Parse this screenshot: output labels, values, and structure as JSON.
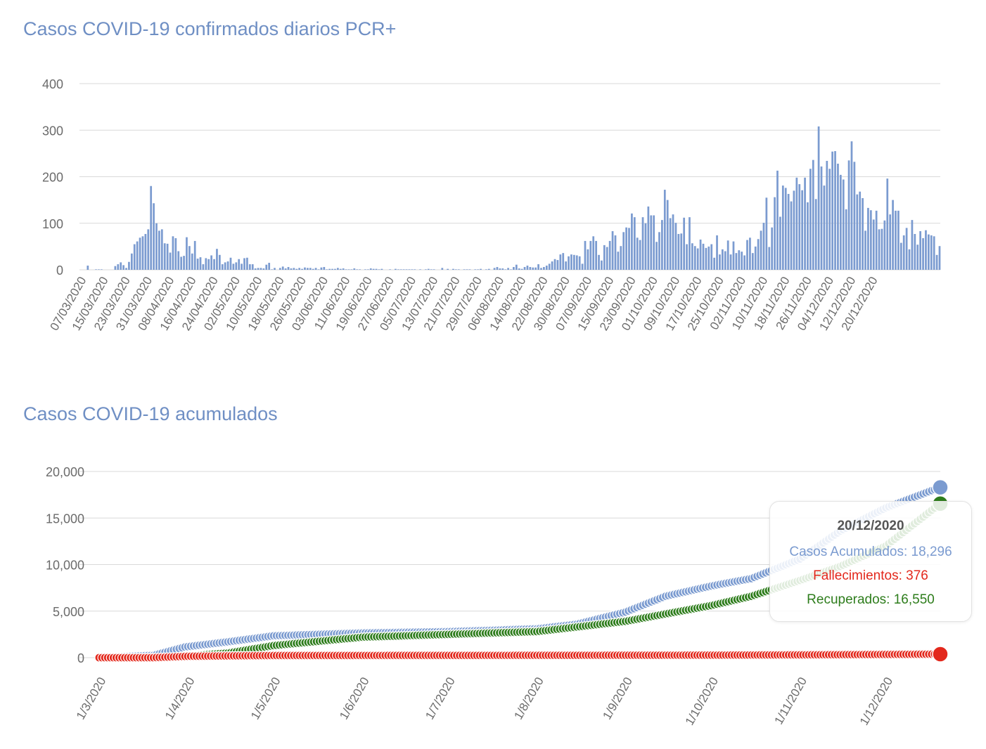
{
  "colors": {
    "accumulated": "#7b9bd0",
    "deaths": "#e3281c",
    "recovered": "#2e7d1c",
    "bar": "#7b9bd0",
    "grid": "#d9d9d9",
    "title": "#6f8fc4"
  },
  "chart_data": [
    {
      "type": "bar",
      "title": "Casos COVID-19 confirmados diarios PCR+",
      "ylim": [
        0,
        400
      ],
      "yticks": [
        0,
        100,
        200,
        300,
        400
      ],
      "categories_start": "07/03/2020",
      "tick_labels": [
        "07/03/2020",
        "15/03/2020",
        "23/03/2020",
        "31/03/2020",
        "08/04/2020",
        "16/04/2020",
        "24/04/2020",
        "02/05/2020",
        "10/05/2020",
        "18/05/2020",
        "26/05/2020",
        "03/06/2020",
        "11/06/2020",
        "19/06/2020",
        "27/06/2020",
        "05/07/2020",
        "13/07/2020",
        "21/07/2020",
        "29/07/2020",
        "06/08/2020",
        "14/08/2020",
        "22/08/2020",
        "30/08/2020",
        "07/09/2020",
        "15/09/2020",
        "23/09/2020",
        "01/10/2020",
        "09/10/2020",
        "17/10/2020",
        "25/10/2020",
        "02/11/2020",
        "10/11/2020",
        "18/11/2020",
        "26/11/2020",
        "04/12/2020",
        "12/12/2020",
        "20/12/2020"
      ],
      "values": [
        0,
        0,
        9,
        0,
        0,
        1,
        1,
        1,
        0,
        0,
        0,
        0,
        8,
        12,
        16,
        10,
        4,
        17,
        35,
        55,
        61,
        69,
        72,
        77,
        87,
        180,
        143,
        100,
        84,
        87,
        57,
        56,
        37,
        72,
        68,
        40,
        28,
        30,
        70,
        51,
        35,
        62,
        24,
        27,
        12,
        25,
        23,
        31,
        23,
        45,
        32,
        12,
        16,
        18,
        26,
        13,
        16,
        23,
        13,
        25,
        26,
        12,
        12,
        3,
        4,
        4,
        3,
        11,
        15,
        1,
        4,
        0,
        4,
        7,
        3,
        6,
        3,
        4,
        2,
        4,
        2,
        5,
        4,
        4,
        2,
        4,
        1,
        5,
        6,
        1,
        2,
        2,
        2,
        4,
        2,
        3,
        1,
        1,
        1,
        3,
        1,
        1,
        0,
        1,
        1,
        3,
        2,
        2,
        1,
        2,
        0,
        0,
        1,
        0,
        2,
        1,
        1,
        1,
        1,
        1,
        1,
        1,
        0,
        1,
        0,
        1,
        2,
        1,
        1,
        0,
        0,
        4,
        0,
        2,
        0,
        2,
        1,
        1,
        0,
        1,
        1,
        1,
        0,
        1,
        1,
        2,
        0,
        1,
        2,
        0,
        4,
        6,
        3,
        3,
        1,
        4,
        1,
        6,
        11,
        3,
        2,
        6,
        9,
        6,
        5,
        5,
        12,
        4,
        6,
        9,
        13,
        18,
        23,
        21,
        33,
        36,
        18,
        29,
        33,
        32,
        31,
        29,
        13,
        62,
        44,
        62,
        72,
        62,
        32,
        20,
        53,
        49,
        62,
        83,
        74,
        39,
        51,
        81,
        91,
        90,
        121,
        113,
        69,
        64,
        113,
        100,
        136,
        117,
        117,
        60,
        81,
        107,
        172,
        150,
        111,
        119,
        101,
        77,
        78,
        112,
        55,
        113,
        57,
        51,
        46,
        65,
        56,
        47,
        50,
        55,
        26,
        74,
        33,
        44,
        40,
        63,
        33,
        61,
        36,
        42,
        39,
        31,
        64,
        69,
        36,
        50,
        66,
        84,
        101,
        155,
        49,
        91,
        156,
        213,
        114,
        181,
        176,
        163,
        147,
        170,
        198,
        184,
        171,
        198,
        145,
        217,
        236,
        152,
        308,
        222,
        181,
        234,
        217,
        254,
        255,
        228,
        204,
        194,
        130,
        235,
        276,
        232,
        162,
        168,
        154,
        84,
        133,
        128,
        108,
        127,
        87,
        88,
        106,
        196,
        119,
        150,
        127,
        127,
        58,
        74,
        90,
        44,
        107,
        77,
        54,
        83,
        68,
        85,
        76,
        74,
        72,
        32,
        51
      ]
    },
    {
      "type": "line",
      "title": "Casos COVID-19 acumulados",
      "ylim": [
        0,
        20000
      ],
      "yticks": [
        "0",
        "5,000",
        "10,000",
        "15,000",
        "20,000"
      ],
      "x_start": "1/3/2020",
      "x_end": "20/12/2020",
      "tick_labels": [
        "1/3/2020",
        "1/4/2020",
        "1/5/2020",
        "1/6/2020",
        "1/7/2020",
        "1/8/2020",
        "1/9/2020",
        "1/10/2020",
        "1/11/2020",
        "1/12/2020"
      ],
      "series": [
        {
          "name": "Casos Acumulados",
          "points": [
            [
              "1/3/2020",
              0
            ],
            [
              "20/3/2020",
              250
            ],
            [
              "31/3/2020",
              1150
            ],
            [
              "15/4/2020",
              1700
            ],
            [
              "1/5/2020",
              2350
            ],
            [
              "1/6/2020",
              2650
            ],
            [
              "1/7/2020",
              2800
            ],
            [
              "1/8/2020",
              3100
            ],
            [
              "15/8/2020",
              3600
            ],
            [
              "1/9/2020",
              4900
            ],
            [
              "15/9/2020",
              6600
            ],
            [
              "1/10/2020",
              7700
            ],
            [
              "15/10/2020",
              8500
            ],
            [
              "1/11/2020",
              10600
            ],
            [
              "15/11/2020",
              13600
            ],
            [
              "1/12/2020",
              16100
            ],
            [
              "20/12/2020",
              18296
            ]
          ]
        },
        {
          "name": "Fallecimientos",
          "points": [
            [
              "1/3/2020",
              0
            ],
            [
              "20/3/2020",
              0
            ],
            [
              "1/4/2020",
              150
            ],
            [
              "1/5/2020",
              230
            ],
            [
              "1/8/2020",
              250
            ],
            [
              "1/10/2020",
              270
            ],
            [
              "1/11/2020",
              300
            ],
            [
              "1/12/2020",
              345
            ],
            [
              "20/12/2020",
              376
            ]
          ]
        },
        {
          "name": "Recuperados",
          "points": [
            [
              "1/3/2020",
              0
            ],
            [
              "25/3/2020",
              0
            ],
            [
              "15/4/2020",
              500
            ],
            [
              "1/5/2020",
              1300
            ],
            [
              "1/6/2020",
              2200
            ],
            [
              "1/7/2020",
              2500
            ],
            [
              "1/8/2020",
              2800
            ],
            [
              "1/9/2020",
              3900
            ],
            [
              "1/10/2020",
              5600
            ],
            [
              "15/10/2020",
              6600
            ],
            [
              "1/11/2020",
              8300
            ],
            [
              "15/11/2020",
              9800
            ],
            [
              "1/12/2020",
              12000
            ],
            [
              "20/12/2020",
              16550
            ]
          ]
        }
      ]
    }
  ],
  "tooltip": {
    "date": "20/12/2020",
    "line1": "Casos Acumulados: 18,296",
    "line2": "Fallecimientos: 376",
    "line3": "Recuperados: 16,550"
  }
}
